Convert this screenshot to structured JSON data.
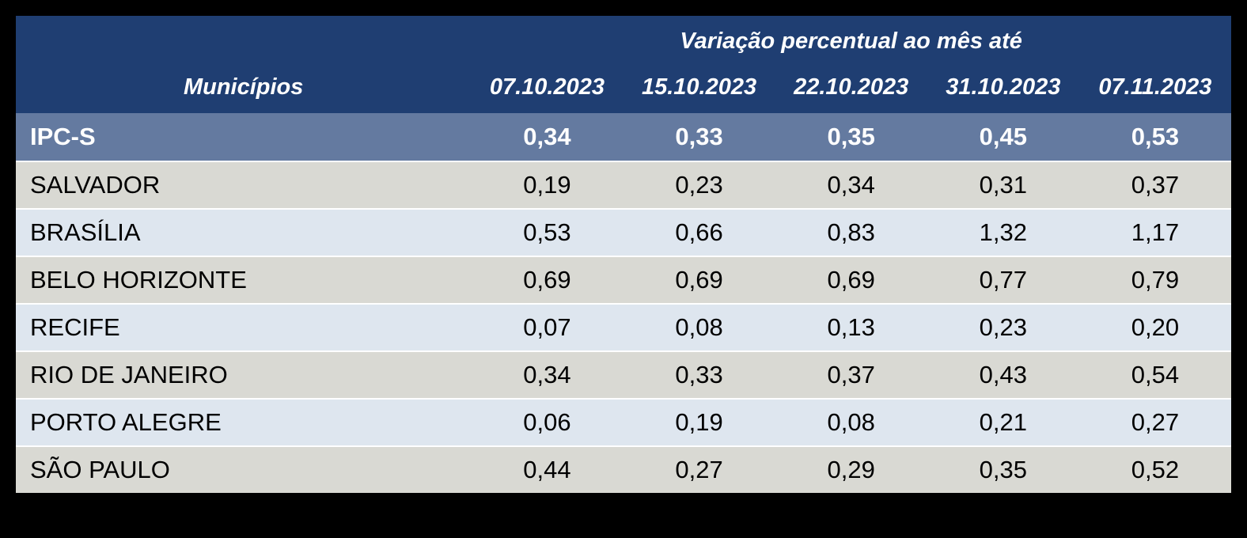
{
  "table": {
    "group_header": "Variação percentual ao mês até",
    "columns": {
      "municipality": "Municípios",
      "dates": [
        "07.10.2023",
        "15.10.2023",
        "22.10.2023",
        "31.10.2023",
        "07.11.2023"
      ]
    },
    "summary_row": {
      "name": "IPC-S",
      "values": [
        "0,34",
        "0,33",
        "0,35",
        "0,45",
        "0,53"
      ]
    },
    "rows": [
      {
        "name": "SALVADOR",
        "values": [
          "0,19",
          "0,23",
          "0,34",
          "0,31",
          "0,37"
        ]
      },
      {
        "name": "BRASÍLIA",
        "values": [
          "0,53",
          "0,66",
          "0,83",
          "1,32",
          "1,17"
        ]
      },
      {
        "name": "BELO HORIZONTE",
        "values": [
          "0,69",
          "0,69",
          "0,69",
          "0,77",
          "0,79"
        ]
      },
      {
        "name": "RECIFE",
        "values": [
          "0,07",
          "0,08",
          "0,13",
          "0,23",
          "0,20"
        ]
      },
      {
        "name": "RIO DE JANEIRO",
        "values": [
          "0,34",
          "0,33",
          "0,37",
          "0,43",
          "0,54"
        ]
      },
      {
        "name": "PORTO ALEGRE",
        "values": [
          "0,06",
          "0,19",
          "0,08",
          "0,21",
          "0,27"
        ]
      },
      {
        "name": "SÃO PAULO",
        "values": [
          "0,44",
          "0,27",
          "0,29",
          "0,35",
          "0,52"
        ]
      }
    ],
    "colors": {
      "page_background": "#000000",
      "header_background": "#1F3E72",
      "header_text": "#FFFFFF",
      "summary_row_background": "#647AA0",
      "summary_row_text": "#FFFFFF",
      "row_gray": "#D9D9D3",
      "row_blue": "#DEE6EF",
      "row_separator": "#FFFFFF",
      "data_text": "#000000"
    }
  },
  "chart_data": {
    "type": "table",
    "title": "Variação percentual ao mês até",
    "row_header": "Municípios",
    "columns": [
      "07.10.2023",
      "15.10.2023",
      "22.10.2023",
      "31.10.2023",
      "07.11.2023"
    ],
    "rows": [
      {
        "label": "IPC-S",
        "values": [
          0.34,
          0.33,
          0.35,
          0.45,
          0.53
        ]
      },
      {
        "label": "SALVADOR",
        "values": [
          0.19,
          0.23,
          0.34,
          0.31,
          0.37
        ]
      },
      {
        "label": "BRASÍLIA",
        "values": [
          0.53,
          0.66,
          0.83,
          1.32,
          1.17
        ]
      },
      {
        "label": "BELO HORIZONTE",
        "values": [
          0.69,
          0.69,
          0.69,
          0.77,
          0.79
        ]
      },
      {
        "label": "RECIFE",
        "values": [
          0.07,
          0.08,
          0.13,
          0.23,
          0.2
        ]
      },
      {
        "label": "RIO DE JANEIRO",
        "values": [
          0.34,
          0.33,
          0.37,
          0.43,
          0.54
        ]
      },
      {
        "label": "PORTO ALEGRE",
        "values": [
          0.06,
          0.19,
          0.08,
          0.21,
          0.27
        ]
      },
      {
        "label": "SÃO PAULO",
        "values": [
          0.44,
          0.27,
          0.29,
          0.35,
          0.52
        ]
      }
    ],
    "notes": "Decimal comma formatting; values are percent variation per month. IPC-S is the highlighted summary row."
  }
}
